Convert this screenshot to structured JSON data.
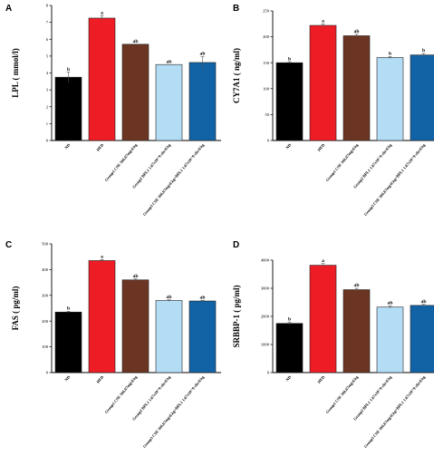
{
  "categories": [
    "ND",
    "HFD",
    "Group1 CSE 166.67mg/d.kg",
    "Group2 BPL1 1.67x10^9 cfu/d.kg",
    "Group3 CSE 166.67mg/d.kg+BPL1 1.67x10^9 cfu/d.kg"
  ],
  "colors": [
    "#000000",
    "#ee1c25",
    "#6b3423",
    "#b3dcf5",
    "#1163a6"
  ],
  "chart_data": [
    {
      "panel": "A",
      "type": "bar",
      "ylabel": "LPL ( mmol/l)",
      "ylim": [
        0,
        8
      ],
      "yticks": [
        0,
        1,
        2,
        3,
        4,
        5,
        6,
        7,
        8
      ],
      "values": [
        3.75,
        7.25,
        5.7,
        4.5,
        4.62
      ],
      "errors": [
        0.3,
        0.15,
        0.0,
        0.0,
        0.35
      ],
      "labels": [
        "b",
        "a",
        "ab",
        "ab",
        "ab"
      ]
    },
    {
      "panel": "B",
      "type": "bar",
      "ylabel": "CY7A1 ( ng/ml)",
      "ylim": [
        0,
        250
      ],
      "yticks": [
        0,
        50,
        100,
        150,
        200,
        250
      ],
      "values": [
        150,
        222,
        202,
        160,
        165
      ],
      "errors": [
        2,
        3,
        3,
        2,
        3
      ],
      "labels": [
        "b",
        "a",
        "ab",
        "b",
        "b"
      ]
    },
    {
      "panel": "C",
      "type": "bar",
      "ylabel": "FAS ( pg/ml)",
      "ylim": [
        0,
        500
      ],
      "yticks": [
        0,
        100,
        200,
        300,
        400,
        500
      ],
      "values": [
        235,
        435,
        360,
        280,
        278
      ],
      "errors": [
        3,
        4,
        4,
        3,
        3
      ],
      "labels": [
        "b",
        "a",
        "ab",
        "ab",
        "ab"
      ]
    },
    {
      "panel": "D",
      "type": "bar",
      "ylabel": "SRBBP-1 ( pg/ml)",
      "ylim": [
        0,
        4000
      ],
      "yticks": [
        0,
        1000,
        2000,
        3000,
        4000
      ],
      "values": [
        1750,
        3820,
        2950,
        2330,
        2390
      ],
      "errors": [
        50,
        60,
        50,
        40,
        40
      ],
      "labels": [
        "b",
        "a",
        "ab",
        "ab",
        "ab"
      ]
    }
  ]
}
